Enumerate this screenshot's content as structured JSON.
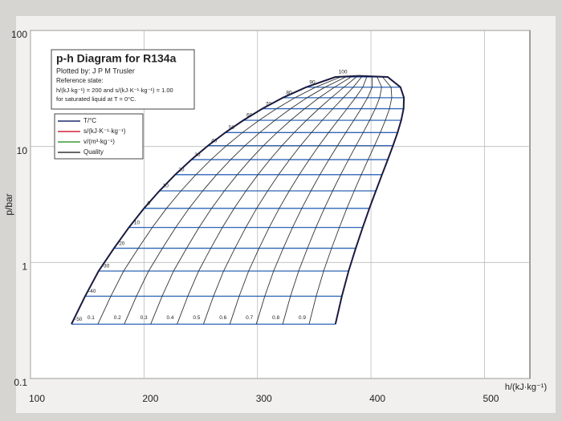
{
  "chart_data": {
    "type": "line",
    "title": "p-h Diagram for R134a",
    "subtitle": "Plotted by: J P M Trusler",
    "notes": [
      "Reference state:",
      "h/(kJ·kg⁻¹) = 200 and s/(kJ·K⁻¹·kg⁻¹) = 1.00",
      "for saturated liquid at T = 0°C."
    ],
    "x_label": "h/(kJ·kg⁻¹)",
    "y_label": "p/bar",
    "xlim": [
      100,
      540
    ],
    "ylim": [
      0.1,
      100
    ],
    "yscale": "log",
    "xticks": [
      100,
      200,
      300,
      400,
      500
    ],
    "yticks": [
      0.1,
      1,
      10,
      100
    ],
    "grid": true,
    "legend": [
      {
        "label": "T/°C",
        "color": "#1f2a6b"
      },
      {
        "label": "s/(kJ·K⁻¹·kg⁻¹)",
        "color": "#d0243a"
      },
      {
        "label": "v/(m³·kg⁻¹)",
        "color": "#3d9a3a"
      },
      {
        "label": "Quality",
        "color": "#333333"
      }
    ],
    "saturation_curve": {
      "color": "#1a1a40",
      "h": [
        136.1,
        148.1,
        160.0,
        173.6,
        186.7,
        200.0,
        213.6,
        227.5,
        241.7,
        256.4,
        271.6,
        287.5,
        304.3,
        322.4,
        342.9,
        368.6,
        389.6,
        414.7,
        426.0,
        429.0,
        428.7,
        426.6,
        423.4,
        419.4,
        414.8,
        409.7,
        404.3,
        398.6,
        392.7,
        386.6,
        380.3,
        374.3,
        368.7
      ],
      "p": [
        0.294,
        0.512,
        0.844,
        1.327,
        2.006,
        2.928,
        4.146,
        5.717,
        7.702,
        10.166,
        13.18,
        16.82,
        21.17,
        26.33,
        32.44,
        39.72,
        40.59,
        39.72,
        32.44,
        26.33,
        21.17,
        16.82,
        13.18,
        10.166,
        7.702,
        5.717,
        4.146,
        2.928,
        2.006,
        1.327,
        0.844,
        0.512,
        0.294
      ]
    },
    "isotherms": {
      "color": "#2e64b8",
      "T": [
        -50,
        -40,
        -30,
        -20,
        -10,
        0,
        10,
        20,
        30,
        40,
        50,
        60,
        70,
        80,
        90,
        100
      ],
      "p": [
        0.294,
        0.512,
        0.844,
        1.327,
        2.006,
        2.928,
        4.146,
        5.717,
        7.702,
        10.166,
        13.18,
        16.82,
        21.17,
        26.33,
        32.44,
        39.72
      ],
      "h_liquid": [
        136.1,
        148.1,
        160.0,
        173.6,
        186.7,
        200.0,
        213.6,
        227.5,
        241.7,
        256.4,
        271.6,
        287.5,
        304.3,
        322.4,
        342.9,
        368.6
      ],
      "h_vapor": [
        368.7,
        374.3,
        380.3,
        386.6,
        392.7,
        398.6,
        404.3,
        409.7,
        414.8,
        419.4,
        423.4,
        426.6,
        428.7,
        429.0,
        426.0,
        414.7
      ]
    },
    "quality": {
      "color": "#333333",
      "values": [
        0.1,
        0.2,
        0.3,
        0.4,
        0.5,
        0.6,
        0.7,
        0.8,
        0.9
      ]
    }
  }
}
